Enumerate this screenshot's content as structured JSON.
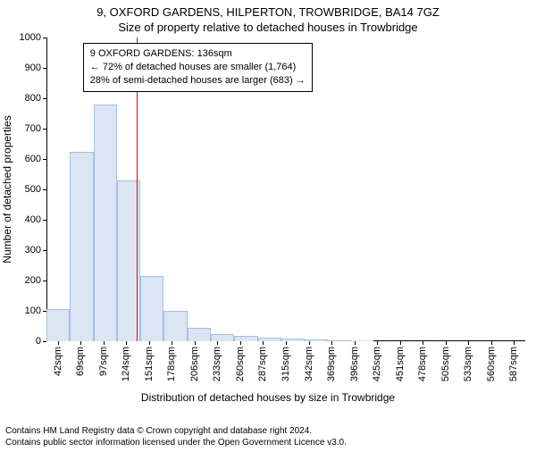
{
  "title_line1": "9, OXFORD GARDENS, HILPERTON, TROWBRIDGE, BA14 7GZ",
  "title_line2": "Size of property relative to detached houses in Trowbridge",
  "ylabel": "Number of detached properties",
  "xlabel": "Distribution of detached houses by size in Trowbridge",
  "ylim_max": 1000,
  "ytick_step": 100,
  "bar_fill": "#dbe5f4",
  "bar_stroke": "#a8bedf",
  "ref_line_color": "#ff0000",
  "ref_value": 136,
  "info_box": {
    "line1": "9 OXFORD GARDENS: 136sqm",
    "line2": "← 72% of detached houses are smaller (1,764)",
    "line3": "28% of semi-detached houses are larger (683) →"
  },
  "categories": [
    "42sqm",
    "69sqm",
    "97sqm",
    "124sqm",
    "151sqm",
    "178sqm",
    "206sqm",
    "233sqm",
    "260sqm",
    "287sqm",
    "315sqm",
    "342sqm",
    "369sqm",
    "396sqm",
    "425sqm",
    "451sqm",
    "478sqm",
    "505sqm",
    "533sqm",
    "560sqm",
    "587sqm"
  ],
  "values": [
    105,
    625,
    780,
    530,
    215,
    100,
    45,
    25,
    18,
    12,
    10,
    5,
    3,
    2,
    0,
    0,
    0,
    0,
    0,
    0,
    0
  ],
  "footer_line1": "Contains HM Land Registry data © Crown copyright and database right 2024.",
  "footer_line2": "Contains public sector information licensed under the Open Government Licence v3.0."
}
